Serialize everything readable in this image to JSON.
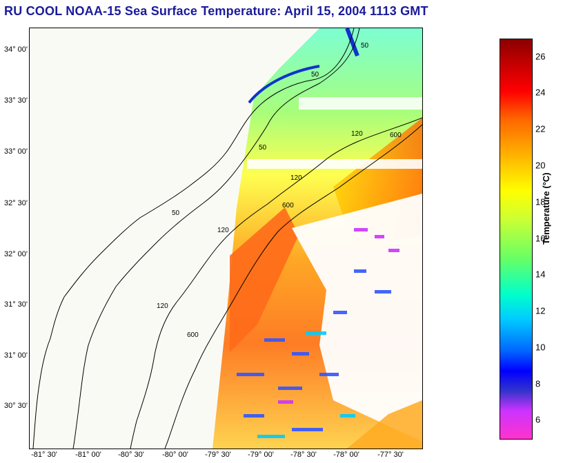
{
  "title": "RU COOL  NOAA-15  Sea Surface Temperature:  April 15, 2004 1113 GMT",
  "lat_labels": [
    "34° 00'",
    "33° 30'",
    "33° 00'",
    "32° 30'",
    "32° 00'",
    "31° 30'",
    "31° 00'",
    "30° 30'"
  ],
  "lon_labels": [
    "-81° 30'",
    "-81° 00'",
    "-80° 30'",
    "-80° 00'",
    "-79° 30'",
    "-79° 00'",
    "-78° 30'",
    "-78° 00'",
    "-77° 30'"
  ],
  "isobaths": [
    "50",
    "50",
    "50",
    "50",
    "120",
    "120",
    "120",
    "120",
    "600",
    "600",
    "600"
  ],
  "colorbar": {
    "label": "Temperature (°C)",
    "ticks": [
      "26",
      "24",
      "22",
      "20",
      "18",
      "16",
      "14",
      "12",
      "10",
      "8",
      "6"
    ],
    "range": [
      5,
      27
    ]
  },
  "colors": {
    "title": "#1a1a9c",
    "land": "#fafaf5"
  }
}
